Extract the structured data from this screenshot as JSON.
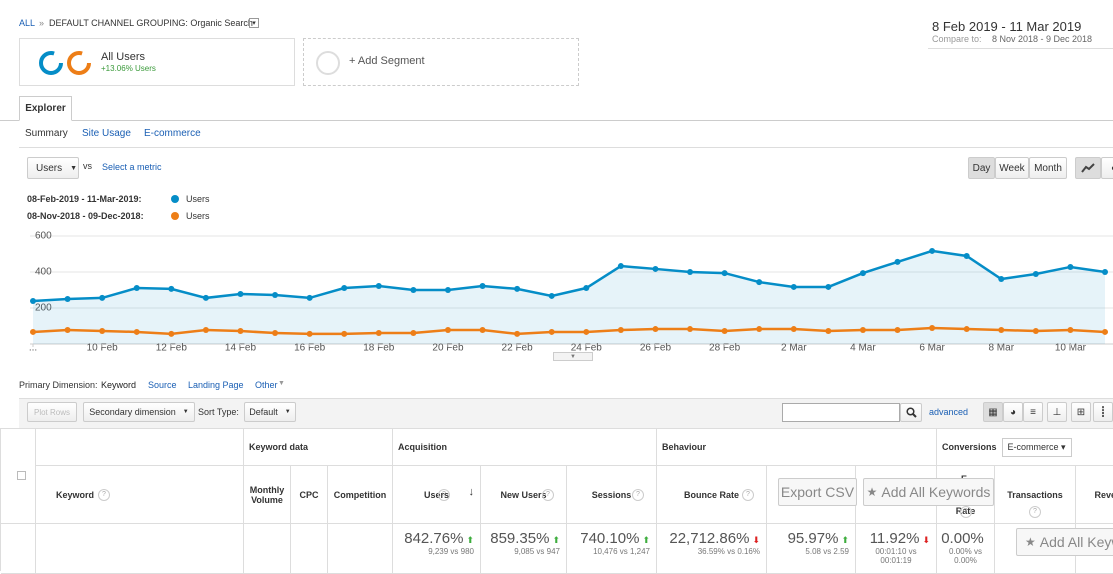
{
  "breadcrumb": {
    "root": "ALL",
    "separator": "»",
    "path": "DEFAULT CHANNEL GROUPING: Organic Search"
  },
  "date_range": {
    "current": "8 Feb 2019 - 11 Mar 2019",
    "compare_label": "Compare to:",
    "compare": "8 Nov 2018 - 9 Dec 2018"
  },
  "segments": {
    "active": {
      "name": "All Users",
      "change": "+13.06% Users"
    },
    "add": "+ Add Segment"
  },
  "tabs": {
    "active": "Explorer",
    "sub": [
      "Summary",
      "Site Usage",
      "E-commerce"
    ]
  },
  "chart_controls": {
    "metric": "Users",
    "vs": "vs",
    "select": "Select a metric",
    "granularity": [
      "Day",
      "Week",
      "Month"
    ]
  },
  "chart_data": {
    "type": "line",
    "categories": [
      "...",
      null,
      "10 Feb",
      null,
      "12 Feb",
      null,
      "14 Feb",
      null,
      "16 Feb",
      null,
      "18 Feb",
      null,
      "20 Feb",
      null,
      "22 Feb",
      null,
      "24 Feb",
      null,
      "26 Feb",
      null,
      "28 Feb",
      null,
      "2 Mar",
      null,
      "4 Mar",
      null,
      "6 Mar",
      null,
      "8 Mar",
      null,
      "10 Mar",
      null
    ],
    "series": [
      {
        "period": "08-Feb-2019 - 11-Mar-2019:",
        "name": "Users",
        "color": "#058dc7",
        "values": [
          239,
          250,
          256,
          311,
          306,
          256,
          278,
          272,
          256,
          311,
          322,
          300,
          300,
          322,
          306,
          267,
          311,
          433,
          417,
          400,
          394,
          344,
          317,
          317,
          394,
          456,
          517,
          489,
          361,
          389,
          428,
          400
        ]
      },
      {
        "period": "08-Nov-2018 - 09-Dec-2018:",
        "name": "Users",
        "color": "#ed7e17",
        "values": [
          67,
          78,
          72,
          67,
          56,
          78,
          72,
          61,
          56,
          56,
          61,
          61,
          78,
          78,
          56,
          67,
          67,
          78,
          83,
          83,
          72,
          83,
          83,
          72,
          78,
          78,
          89,
          83,
          78,
          72,
          78,
          67
        ]
      }
    ],
    "ylim": [
      0,
      600
    ],
    "yticks": [
      200,
      400,
      600
    ],
    "grid": true,
    "area": true
  },
  "dimension_bar": {
    "label": "Primary Dimension:",
    "active": "Keyword",
    "options": [
      "Source",
      "Landing Page",
      "Other"
    ]
  },
  "toolbar": {
    "plot_rows": "Plot Rows",
    "secondary": "Secondary dimension",
    "sort_label": "Sort Type:",
    "sort": "Default",
    "advanced": "advanced"
  },
  "table": {
    "groups": [
      "Keyword data",
      "Acquisition",
      "Behaviour",
      "Conversions"
    ],
    "conversion_select": "E-commerce",
    "columns": [
      {
        "label": "Keyword"
      },
      {
        "label": "Monthly Volume"
      },
      {
        "label": "CPC"
      },
      {
        "label": "Competition"
      },
      {
        "label": "Users"
      },
      {
        "label": "New Users"
      },
      {
        "label": "Sessions"
      },
      {
        "label": "Bounce Rate"
      },
      {
        "label": "E-",
        "label_end": "Rate"
      },
      {
        "label": "Transactions"
      },
      {
        "label": "Reven"
      }
    ],
    "totals": [
      {
        "value": "842.76%",
        "compare": "9,239 vs 980",
        "trend": "up"
      },
      {
        "value": "859.35%",
        "compare": "9,085 vs 947",
        "trend": "up"
      },
      {
        "value": "740.10%",
        "compare": "10,476 vs 1,247",
        "trend": "up"
      },
      {
        "value": "22,712.86%",
        "compare": "36.59% vs 0.16%",
        "trend": "down"
      },
      {
        "value": "95.97%",
        "compare": "5.08 vs 2.59",
        "trend": "up"
      },
      {
        "value": "11.92%",
        "compare": "00:01:10 vs 00:01:19",
        "trend": "down"
      },
      {
        "value": "0.00%",
        "compare": "0.00% vs 0.00%",
        "trend": null
      }
    ]
  },
  "overlay": {
    "export": "Export CSV",
    "add_keywords": "Add All Keywords",
    "add_keywords_cut": "Add All Keyw"
  }
}
